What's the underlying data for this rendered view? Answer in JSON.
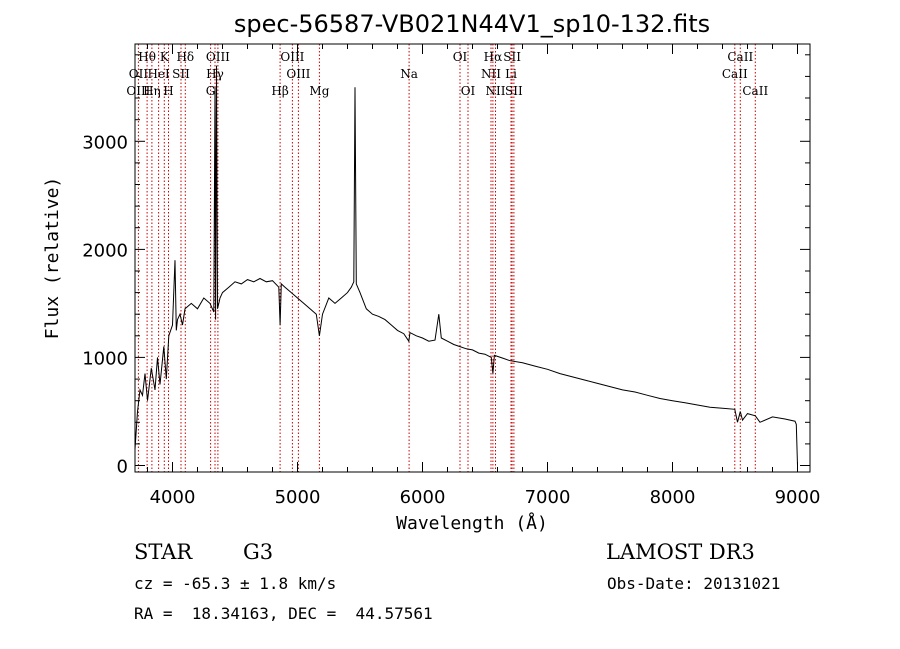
{
  "chart_data": {
    "type": "line",
    "title": "spec-56587-VB021N44V1_sp10-132.fits",
    "xlabel": "Wavelength (Å)",
    "ylabel": "Flux (relative)",
    "xlim": [
      3700,
      9100
    ],
    "ylim": [
      -60,
      3900
    ],
    "xticks": [
      4000,
      5000,
      6000,
      7000,
      8000,
      9000
    ],
    "yticks": [
      0,
      1000,
      2000,
      3000
    ],
    "grid": false,
    "series": [
      {
        "name": "spectrum",
        "x": [
          3700,
          3720,
          3740,
          3760,
          3780,
          3800,
          3830,
          3860,
          3880,
          3900,
          3930,
          3950,
          3970,
          4000,
          4020,
          4030,
          4040,
          4060,
          4080,
          4100,
          4150,
          4200,
          4250,
          4300,
          4330,
          4340,
          4345,
          4352,
          4360,
          4370,
          4380,
          4400,
          4450,
          4500,
          4550,
          4600,
          4650,
          4700,
          4750,
          4800,
          4850,
          4861,
          4870,
          4900,
          4950,
          5000,
          5050,
          5100,
          5150,
          5175,
          5200,
          5250,
          5300,
          5350,
          5400,
          5430,
          5450,
          5460,
          5470,
          5500,
          5550,
          5600,
          5650,
          5700,
          5750,
          5800,
          5850,
          5890,
          5900,
          5950,
          6000,
          6050,
          6100,
          6130,
          6150,
          6200,
          6250,
          6300,
          6350,
          6400,
          6450,
          6500,
          6550,
          6563,
          6575,
          6600,
          6650,
          6700,
          6800,
          6900,
          7000,
          7100,
          7200,
          7300,
          7400,
          7500,
          7600,
          7700,
          7800,
          7900,
          8000,
          8100,
          8200,
          8300,
          8400,
          8498,
          8520,
          8542,
          8560,
          8600,
          8662,
          8700,
          8800,
          8900,
          8980,
          8990,
          9000
        ],
        "values": [
          150,
          500,
          700,
          650,
          850,
          600,
          900,
          700,
          1000,
          750,
          1100,
          800,
          1200,
          1300,
          1900,
          1250,
          1350,
          1400,
          1300,
          1450,
          1500,
          1450,
          1550,
          1500,
          1420,
          3500,
          1350,
          3700,
          1450,
          1500,
          1550,
          1600,
          1650,
          1700,
          1680,
          1720,
          1700,
          1730,
          1700,
          1710,
          1650,
          1300,
          1680,
          1650,
          1600,
          1550,
          1500,
          1450,
          1400,
          1200,
          1400,
          1550,
          1500,
          1550,
          1600,
          1650,
          1700,
          3500,
          1680,
          1600,
          1450,
          1400,
          1380,
          1350,
          1300,
          1250,
          1220,
          1150,
          1230,
          1200,
          1180,
          1150,
          1160,
          1400,
          1180,
          1150,
          1120,
          1100,
          1080,
          1070,
          1040,
          1030,
          1000,
          850,
          1020,
          1010,
          990,
          970,
          950,
          920,
          890,
          850,
          820,
          790,
          760,
          730,
          700,
          680,
          650,
          620,
          600,
          580,
          560,
          540,
          530,
          520,
          400,
          500,
          420,
          480,
          460,
          400,
          450,
          430,
          410,
          380,
          0
        ],
        "color": "#000000"
      }
    ],
    "line_labels": [
      {
        "text": "Hθ",
        "x": 3797,
        "row": 1
      },
      {
        "text": "OII",
        "x": 3727,
        "row": 2
      },
      {
        "text": "OIII",
        "x": 3727,
        "row": 3
      },
      {
        "text": "K",
        "x": 3934,
        "row": 1
      },
      {
        "text": "HeI",
        "x": 3889,
        "row": 2
      },
      {
        "text": "Hη",
        "x": 3835,
        "row": 3
      },
      {
        "text": "SII",
        "x": 4068,
        "row": 2
      },
      {
        "text": "H",
        "x": 3968,
        "row": 3
      },
      {
        "text": "Hδ",
        "x": 4102,
        "row": 1
      },
      {
        "text": "OIII",
        "x": 4363,
        "row": 1
      },
      {
        "text": "Hγ",
        "x": 4340,
        "row": 2
      },
      {
        "text": "G",
        "x": 4305,
        "row": 3
      },
      {
        "text": "Hβ",
        "x": 4861,
        "row": 3
      },
      {
        "text": "OIII",
        "x": 4959,
        "row": 1
      },
      {
        "text": "OIII",
        "x": 5007,
        "row": 2
      },
      {
        "text": "Mg",
        "x": 5175,
        "row": 3
      },
      {
        "text": "Na",
        "x": 5893,
        "row": 2
      },
      {
        "text": "OI",
        "x": 6300,
        "row": 1
      },
      {
        "text": "OI",
        "x": 6364,
        "row": 3
      },
      {
        "text": "Hα",
        "x": 6563,
        "row": 1
      },
      {
        "text": "NII",
        "x": 6548,
        "row": 2
      },
      {
        "text": "NII",
        "x": 6584,
        "row": 3
      },
      {
        "text": "SII",
        "x": 6717,
        "row": 1
      },
      {
        "text": "Li",
        "x": 6708,
        "row": 2
      },
      {
        "text": "SII",
        "x": 6731,
        "row": 3
      },
      {
        "text": "CaII",
        "x": 8542,
        "row": 1
      },
      {
        "text": "CaII",
        "x": 8498,
        "row": 2
      },
      {
        "text": "CaII",
        "x": 8662,
        "row": 3
      }
    ],
    "line_markers": [
      3727,
      3797,
      3835,
      3889,
      3934,
      3968,
      4068,
      4102,
      4305,
      4340,
      4363,
      4861,
      4959,
      5007,
      5175,
      5893,
      6300,
      6364,
      6548,
      6563,
      6584,
      6708,
      6717,
      6731,
      8498,
      8542,
      8662
    ],
    "marker_color": "#cc0000"
  },
  "info": {
    "object_class": "STAR",
    "subclass": "G3",
    "survey": "LAMOST DR3",
    "redshift": "cz = -65.3 ± 1.8 km/s",
    "obs_date": "Obs-Date: 20131021",
    "coords": "RA =  18.34163, DEC =  44.57561"
  }
}
